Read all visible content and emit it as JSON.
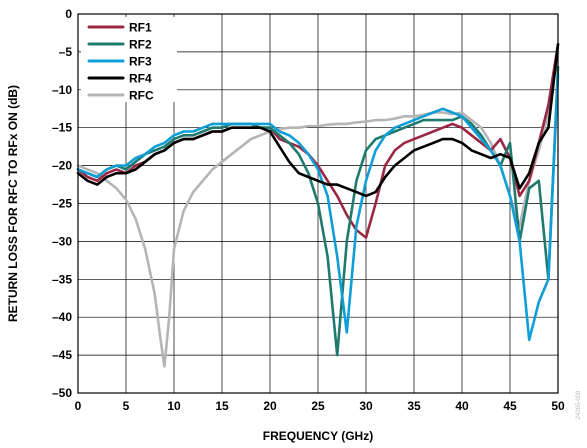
{
  "chart_data": {
    "type": "line",
    "title": "",
    "xlabel": "FREQUENCY (GHz)",
    "ylabel": "RETURN LOSS FOR RFC TO RFx ON (dB)",
    "xlim": [
      0,
      50
    ],
    "ylim": [
      -50,
      0
    ],
    "xticks": [
      "0",
      "5",
      "10",
      "15",
      "20",
      "25",
      "30",
      "35",
      "40",
      "45",
      "50"
    ],
    "yticks": [
      "0",
      "–5",
      "–10",
      "–15",
      "–20",
      "–25",
      "–30",
      "–35",
      "–40",
      "–45",
      "–50"
    ],
    "grid": true,
    "legend_position": "top-left",
    "figure_id": "24265-008",
    "series": [
      {
        "name": "RF1",
        "color": "#9b2743",
        "x": [
          0,
          1,
          2,
          3,
          4,
          5,
          6,
          7,
          8,
          9,
          10,
          11,
          12,
          13,
          14,
          15,
          16,
          17,
          18,
          19,
          20,
          21,
          22,
          23,
          24,
          25,
          26,
          27,
          28,
          29,
          30,
          31,
          32,
          33,
          34,
          35,
          36,
          37,
          38,
          39,
          40,
          41,
          42,
          43,
          44,
          45,
          46,
          47,
          48,
          49,
          50
        ],
        "y": [
          -20.5,
          -21.5,
          -22,
          -21,
          -20.5,
          -21,
          -20,
          -19.5,
          -18.5,
          -18,
          -17,
          -16.5,
          -16.5,
          -16,
          -15.5,
          -15.5,
          -15,
          -15,
          -15,
          -15,
          -15,
          -16.5,
          -17,
          -17.5,
          -18.5,
          -20,
          -22,
          -24,
          -26.5,
          -28.5,
          -29.5,
          -25,
          -20,
          -18,
          -17,
          -16.5,
          -16,
          -15.5,
          -15,
          -14.5,
          -15,
          -16,
          -17,
          -18,
          -16.5,
          -19,
          -24,
          -22,
          -17,
          -12,
          -4
        ]
      },
      {
        "name": "RF2",
        "color": "#1f7a6e",
        "x": [
          0,
          1,
          2,
          3,
          4,
          5,
          6,
          7,
          8,
          9,
          10,
          11,
          12,
          13,
          14,
          15,
          16,
          17,
          18,
          19,
          20,
          21,
          22,
          23,
          24,
          25,
          26,
          27,
          28,
          29,
          30,
          31,
          32,
          33,
          34,
          35,
          36,
          37,
          38,
          39,
          40,
          41,
          42,
          43,
          44,
          45,
          46,
          47,
          48,
          49,
          50
        ],
        "y": [
          -20.5,
          -21,
          -21.5,
          -20.5,
          -20,
          -20.5,
          -19.5,
          -18.5,
          -18,
          -17.5,
          -16.5,
          -16,
          -16,
          -15.5,
          -15,
          -15,
          -14.5,
          -14.5,
          -14.5,
          -15,
          -15,
          -16,
          -17,
          -18.5,
          -21,
          -25,
          -32,
          -45,
          -30,
          -22,
          -18,
          -16.5,
          -16,
          -15.5,
          -15,
          -14.5,
          -14,
          -14,
          -14,
          -14,
          -13.5,
          -14.5,
          -16,
          -18,
          -20,
          -17,
          -30,
          -23,
          -22,
          -35,
          -7
        ]
      },
      {
        "name": "RF3",
        "color": "#0f9fd8",
        "x": [
          0,
          1,
          2,
          3,
          4,
          5,
          6,
          7,
          8,
          9,
          10,
          11,
          12,
          13,
          14,
          15,
          16,
          17,
          18,
          19,
          20,
          21,
          22,
          23,
          24,
          25,
          26,
          27,
          28,
          29,
          30,
          31,
          32,
          33,
          34,
          35,
          36,
          37,
          38,
          39,
          40,
          41,
          42,
          43,
          44,
          45,
          46,
          47,
          48,
          49,
          50
        ],
        "y": [
          -20.5,
          -21,
          -21.5,
          -20.5,
          -20,
          -20,
          -19,
          -18.5,
          -17.5,
          -17,
          -16,
          -15.5,
          -15.5,
          -15,
          -14.5,
          -14.5,
          -14.5,
          -14.5,
          -14.5,
          -14.5,
          -14.5,
          -15.5,
          -16,
          -17,
          -18.5,
          -20.5,
          -24,
          -32,
          -42,
          -28,
          -22,
          -18,
          -16,
          -15,
          -14.5,
          -14,
          -13.5,
          -13,
          -12.5,
          -13,
          -13.5,
          -15,
          -16.5,
          -18,
          -20,
          -24,
          -30,
          -43,
          -38,
          -35,
          -8
        ]
      },
      {
        "name": "RF4",
        "color": "#000000",
        "x": [
          0,
          1,
          2,
          3,
          4,
          5,
          6,
          7,
          8,
          9,
          10,
          11,
          12,
          13,
          14,
          15,
          16,
          17,
          18,
          19,
          20,
          21,
          22,
          23,
          24,
          25,
          26,
          27,
          28,
          29,
          30,
          31,
          32,
          33,
          34,
          35,
          36,
          37,
          38,
          39,
          40,
          41,
          42,
          43,
          44,
          45,
          46,
          47,
          48,
          49,
          50
        ],
        "y": [
          -21,
          -22,
          -22.5,
          -21.5,
          -21,
          -21,
          -20.5,
          -19.5,
          -18.5,
          -18,
          -17,
          -16.5,
          -16.5,
          -16,
          -15.5,
          -15.5,
          -15,
          -15,
          -15,
          -15,
          -15.5,
          -17.5,
          -19.5,
          -21,
          -21.5,
          -22,
          -22.5,
          -22.5,
          -23,
          -23.5,
          -24,
          -23.5,
          -21.5,
          -20,
          -19,
          -18,
          -17.5,
          -17,
          -16.5,
          -16.5,
          -17,
          -18,
          -18.5,
          -19,
          -18.5,
          -19,
          -23,
          -21,
          -17,
          -15,
          -4
        ]
      },
      {
        "name": "RFC",
        "color": "#b5b5b5",
        "x": [
          0,
          1,
          2,
          3,
          4,
          5,
          6,
          7,
          8,
          8.5,
          9,
          9.5,
          10,
          11,
          12,
          13,
          14,
          15,
          16,
          17,
          18,
          19,
          20,
          21,
          22,
          23,
          24,
          25,
          26,
          27,
          28,
          29,
          30,
          31,
          32,
          33,
          34,
          35,
          36,
          37,
          38,
          39,
          40,
          41,
          42,
          43,
          44,
          45,
          46,
          47,
          48,
          49,
          50
        ],
        "y": [
          -20,
          -20.5,
          -21,
          -22,
          -23,
          -24.5,
          -27,
          -31,
          -37,
          -42,
          -46.5,
          -40,
          -31,
          -26,
          -23.5,
          -22,
          -20.5,
          -19.5,
          -18.5,
          -17.5,
          -16.5,
          -16,
          -15.5,
          -15.2,
          -15,
          -15,
          -14.8,
          -14.8,
          -14.6,
          -14.5,
          -14.5,
          -14.3,
          -14.2,
          -14,
          -14,
          -13.8,
          -13.5,
          -13.5,
          -13.3,
          -13,
          -13,
          -13.2,
          -13,
          -14,
          -15,
          -17,
          -20,
          -24,
          -28,
          -22,
          -18,
          -13,
          -5
        ]
      }
    ]
  }
}
